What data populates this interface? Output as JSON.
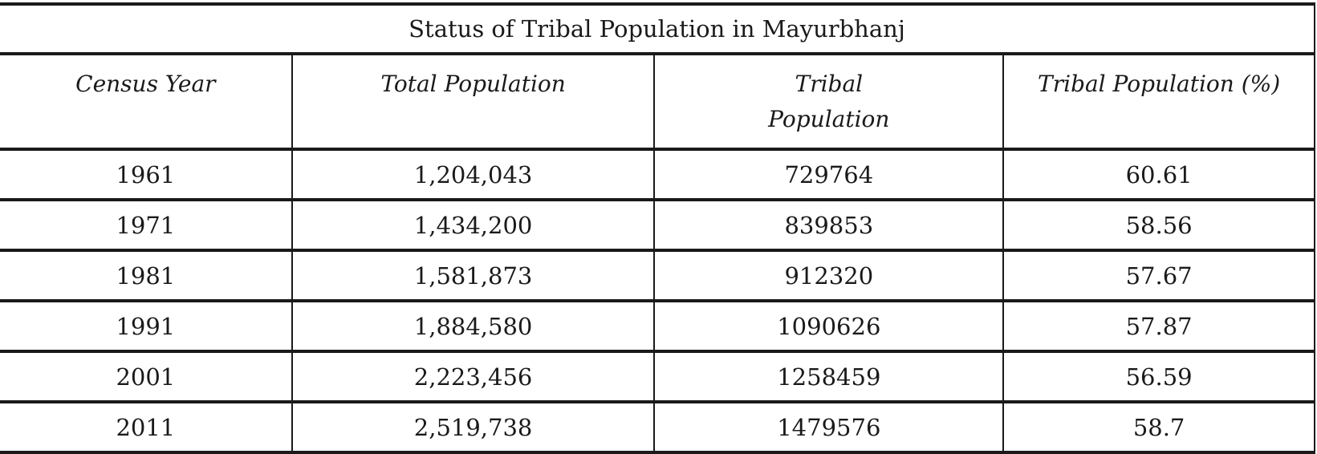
{
  "table": {
    "title": "Status of Tribal Population in Mayurbhanj",
    "headers": [
      "Census Year",
      "Total Population",
      "Tribal Population",
      "Tribal Population (%)"
    ],
    "rows": [
      [
        "1961",
        "1,204,043",
        "729764",
        "60.61"
      ],
      [
        "1971",
        "1,434,200",
        "839853",
        "58.56"
      ],
      [
        "1981",
        "1,581,873",
        "912320",
        "57.67"
      ],
      [
        "1991",
        "1,884,580",
        "1090626",
        "57.87"
      ],
      [
        "2001",
        "2,223,456",
        "1258459",
        "56.59"
      ],
      [
        "2011",
        "2,519,738",
        "1479576",
        "58.7"
      ]
    ]
  }
}
